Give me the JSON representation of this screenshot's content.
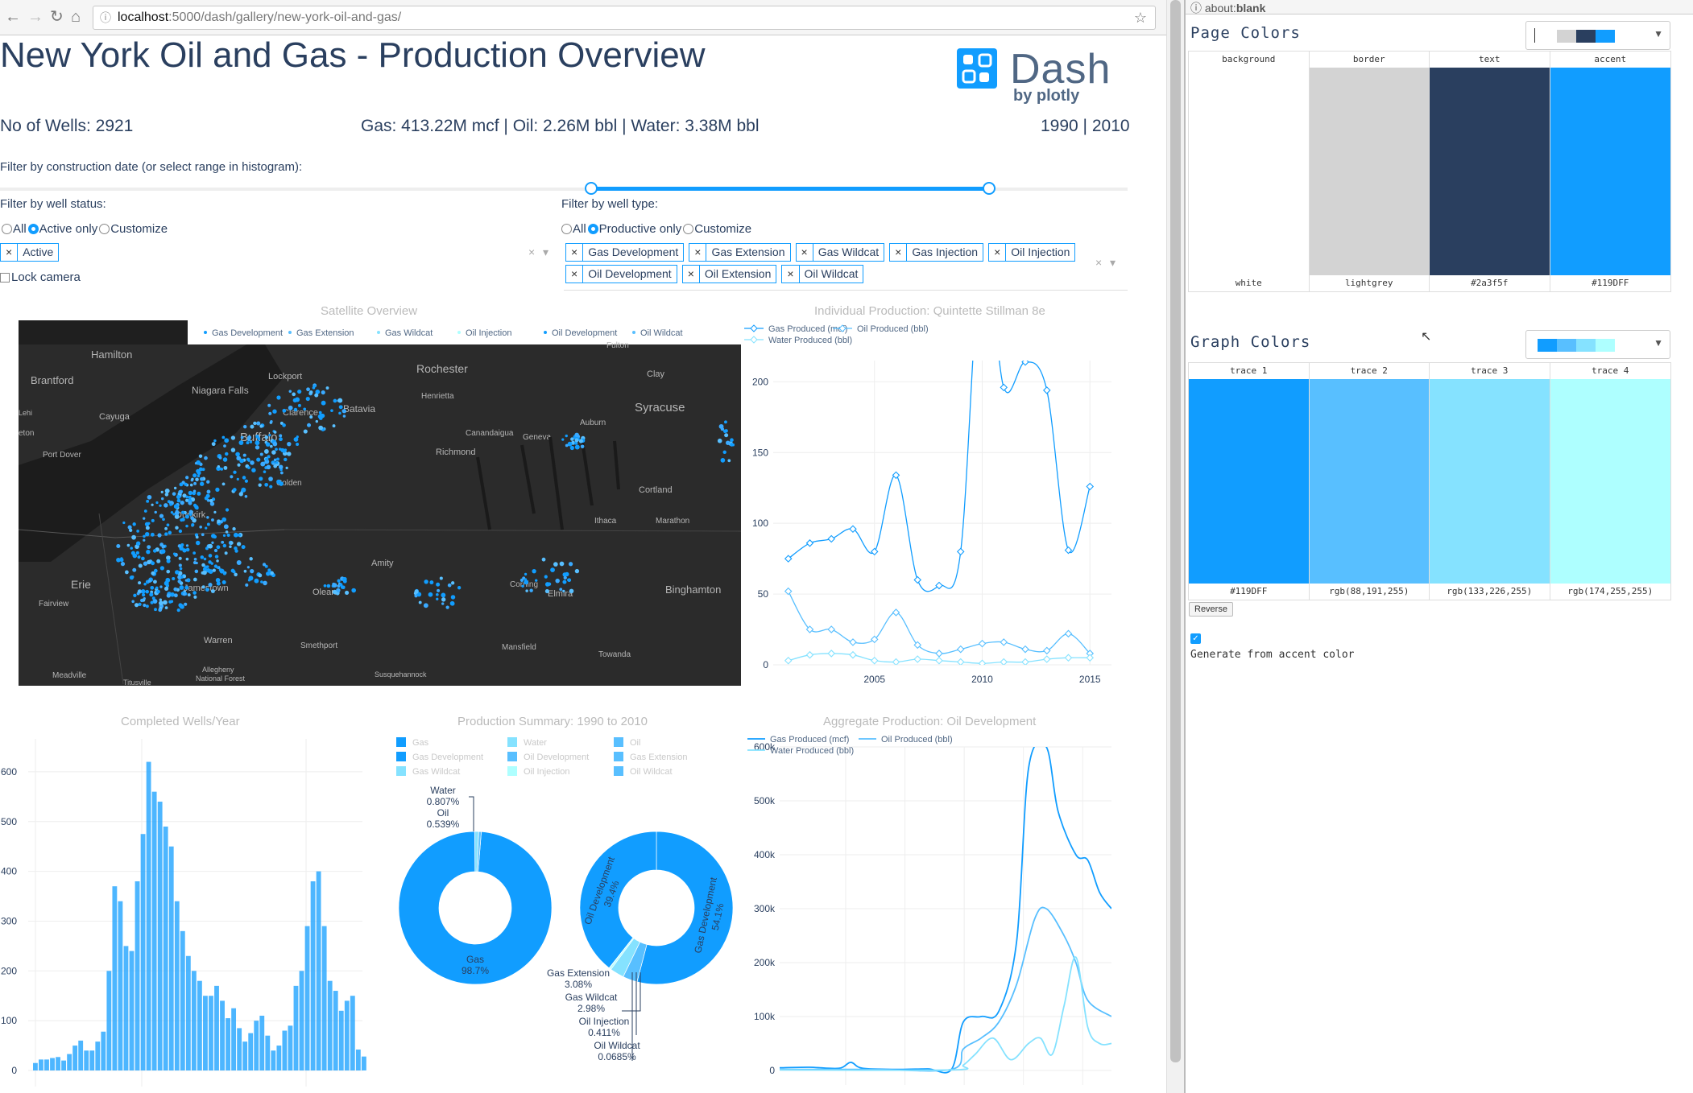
{
  "browser": {
    "url_host": "localhost",
    "url_path": ":5000/dash/gallery/new-york-oil-and-gas/",
    "right_url_prefix": "about:",
    "right_url_strong": "blank"
  },
  "header": {
    "title": "New York Oil and Gas - Production Overview",
    "logo_text": "Dash",
    "logo_sub": "by plotly"
  },
  "stats": {
    "wells": "No of Wells: 2921",
    "production": "Gas: 413.22M mcf | Oil: 2.26M bbl | Water: 3.38M bbl",
    "years": "1990 | 2010"
  },
  "filters": {
    "date_label": "Filter by construction date (or select range in histogram):",
    "status_label": "Filter by well status:",
    "type_label": "Filter by well type:",
    "status_options": [
      "All",
      "Active only",
      "Customize"
    ],
    "status_selected": 1,
    "type_options": [
      "All",
      "Productive only",
      "Customize"
    ],
    "type_selected": 1,
    "status_tags": [
      "Active"
    ],
    "type_tags": [
      "Gas Development",
      "Gas Extension",
      "Gas Wildcat",
      "Gas Injection",
      "Oil Injection",
      "Oil Development",
      "Oil Extension",
      "Oil Wildcat"
    ],
    "lock_camera": "Lock camera",
    "remove_symbol": "×",
    "clear_symbol": "×",
    "caret_symbol": "▾"
  },
  "map": {
    "title": "Satellite Overview",
    "legend": [
      "Gas Development",
      "Gas Extension",
      "Gas Wildcat",
      "Oil Injection",
      "Oil Development",
      "Oil Wildcat"
    ],
    "places": [
      "Hamilton",
      "Brantford",
      "Niagara Falls",
      "Lockport",
      "Rochester",
      "Clay",
      "Syracuse",
      "Henrietta",
      "Cayuga",
      "Clarence",
      "Batavia",
      "Buffalo",
      "Canandaigua",
      "Geneva",
      "Auburn",
      "Port Dover",
      "Richmond",
      "Colden",
      "Cortland",
      "Dunkirk",
      "Ithaca",
      "Marathon",
      "Amity",
      "Erie",
      "Jamestown",
      "Olean",
      "Corning",
      "Elmira",
      "Binghamton",
      "Fairview",
      "Warren",
      "Smethport",
      "Mansfield",
      "Towanda",
      "Meadville",
      "Allegheny National Forest",
      "Susquehannock",
      "Fulton",
      "Titusville",
      "Lehi",
      "eton"
    ]
  },
  "individual": {
    "title": "Individual Production: Quintette Stillman 8e",
    "legend": [
      "Gas Produced (mcf)",
      "Oil Produced (bbl)",
      "Water Produced (bbl)"
    ],
    "x": [
      2001,
      2002,
      2003,
      2004,
      2005,
      2006,
      2007,
      2008,
      2009,
      2010,
      2011,
      2012,
      2013,
      2014,
      2015
    ],
    "gas": [
      75,
      86,
      89,
      96,
      80,
      134,
      60,
      56,
      80,
      300,
      196,
      214,
      194,
      81,
      126
    ],
    "oil": [
      52,
      25,
      25,
      16,
      18,
      37,
      14,
      8,
      11,
      15,
      16,
      11,
      10,
      22,
      8
    ],
    "water": [
      3,
      7,
      8,
      7,
      3,
      2,
      4,
      3,
      2,
      1,
      2,
      2,
      4,
      5,
      5
    ],
    "x_ticks": [
      2005,
      2010,
      2015
    ],
    "y_ticks": [
      0,
      50,
      100,
      150,
      200
    ],
    "ylim": [
      0,
      215
    ],
    "xlim": [
      2000.3,
      2016
    ]
  },
  "histogram": {
    "title": "Completed Wells/Year",
    "y_ticks": [
      "0",
      "100",
      "200",
      "300",
      "400",
      "500",
      "600"
    ],
    "ylim": [
      0,
      650
    ],
    "values": [
      15,
      22,
      22,
      25,
      27,
      20,
      33,
      50,
      60,
      40,
      40,
      58,
      78,
      200,
      370,
      340,
      250,
      240,
      380,
      475,
      620,
      560,
      540,
      490,
      450,
      340,
      280,
      230,
      200,
      180,
      150,
      150,
      170,
      140,
      105,
      125,
      85,
      58,
      75,
      100,
      110,
      70,
      40,
      50,
      80,
      90,
      170,
      200,
      290,
      380,
      400,
      290,
      180,
      160,
      120,
      140,
      150,
      42,
      28
    ]
  },
  "pies": {
    "title": "Production Summary: 1990 to 2010",
    "legend": [
      {
        "label": "Gas",
        "color": "#119DFF"
      },
      {
        "label": "Water",
        "color": "#85E2FF"
      },
      {
        "label": "Oil",
        "color": "#58BFFF"
      },
      {
        "label": "Gas Development",
        "color": "#119DFF"
      },
      {
        "label": "Oil Development",
        "color": "#58BFFF"
      },
      {
        "label": "Gas Extension",
        "color": "#58BFFF"
      },
      {
        "label": "Gas Wildcat",
        "color": "#85E2FF"
      },
      {
        "label": "Oil Injection",
        "color": "#AEFFFF"
      },
      {
        "label": "Oil Wildcat",
        "color": "#58BFFF"
      }
    ],
    "pie1": [
      {
        "label": "Gas",
        "value": 98.7,
        "text": "98.7%",
        "color": "#119DFF"
      },
      {
        "label": "Water",
        "value": 0.807,
        "text": "0.807%",
        "color": "#85E2FF"
      },
      {
        "label": "Oil",
        "value": 0.539,
        "text": "0.539%",
        "color": "#58BFFF"
      }
    ],
    "pie2": [
      {
        "label": "Gas Development",
        "value": 54.1,
        "text": "54.1%",
        "color": "#119DFF"
      },
      {
        "label": "Oil Development",
        "value": 39.4,
        "text": "39.4%",
        "color": "#119DFF"
      },
      {
        "label": "Gas Extension",
        "value": 3.08,
        "text": "3.08%",
        "color": "#58BFFF"
      },
      {
        "label": "Gas Wildcat",
        "value": 2.98,
        "text": "2.98%",
        "color": "#85E2FF"
      },
      {
        "label": "Oil Injection",
        "value": 0.411,
        "text": "0.411%",
        "color": "#AEFFFF"
      },
      {
        "label": "Oil Wildcat",
        "value": 0.0685,
        "text": "0.0685%",
        "color": "#58BFFF"
      }
    ]
  },
  "aggregate": {
    "title": "Aggregate Production: Oil Development",
    "legend": [
      "Gas Produced (mcf)",
      "Oil Produced (bbl)",
      "Water Produced (bbl)"
    ],
    "y_ticks": [
      "0",
      "100k",
      "200k",
      "300k",
      "400k",
      "500k",
      "600k"
    ],
    "ylim": [
      0,
      600000
    ],
    "xlim": [
      1960,
      2016
    ],
    "gas": [
      [
        1960,
        5000
      ],
      [
        1965,
        6000
      ],
      [
        1970,
        4000
      ],
      [
        1972,
        15000
      ],
      [
        1974,
        4000
      ],
      [
        1980,
        2000
      ],
      [
        1985,
        3000
      ],
      [
        1989,
        2000
      ],
      [
        1991,
        90000
      ],
      [
        1994,
        100000
      ],
      [
        1997,
        110000
      ],
      [
        2000,
        240000
      ],
      [
        2002,
        560000
      ],
      [
        2005,
        600000
      ],
      [
        2007,
        480000
      ],
      [
        2010,
        400000
      ],
      [
        2012,
        390000
      ],
      [
        2014,
        330000
      ],
      [
        2016,
        300000
      ]
    ],
    "oil": [
      [
        1960,
        2000
      ],
      [
        1975,
        2000
      ],
      [
        1989,
        2000
      ],
      [
        1991,
        40000
      ],
      [
        1994,
        60000
      ],
      [
        1997,
        90000
      ],
      [
        2000,
        160000
      ],
      [
        2003,
        280000
      ],
      [
        2005,
        300000
      ],
      [
        2008,
        250000
      ],
      [
        2010,
        200000
      ],
      [
        2012,
        130000
      ],
      [
        2016,
        100000
      ]
    ],
    "water": [
      [
        1960,
        1000
      ],
      [
        1989,
        1000
      ],
      [
        1991,
        10000
      ],
      [
        1993,
        30000
      ],
      [
        1996,
        60000
      ],
      [
        1999,
        20000
      ],
      [
        2002,
        50000
      ],
      [
        2004,
        60000
      ],
      [
        2006,
        30000
      ],
      [
        2008,
        120000
      ],
      [
        2010,
        210000
      ],
      [
        2012,
        80000
      ],
      [
        2014,
        50000
      ],
      [
        2016,
        50000
      ]
    ]
  },
  "page_colors": {
    "title": "Page Colors",
    "columns": [
      {
        "head": "background",
        "foot": "white",
        "color": "#ffffff"
      },
      {
        "head": "border",
        "foot": "lightgrey",
        "color": "#d3d3d3"
      },
      {
        "head": "text",
        "foot": "#2a3f5f",
        "color": "#2a3f5f"
      },
      {
        "head": "accent",
        "foot": "#119DFF",
        "color": "#119DFF"
      }
    ]
  },
  "graph_colors": {
    "title": "Graph Colors",
    "columns": [
      {
        "head": "trace 1",
        "foot": "#119DFF",
        "color": "#119DFF"
      },
      {
        "head": "trace 2",
        "foot": "rgb(88,191,255)",
        "color": "#58BFFF"
      },
      {
        "head": "trace 3",
        "foot": "rgb(133,226,255)",
        "color": "#85E2FF"
      },
      {
        "head": "trace 4",
        "foot": "rgb(174,255,255)",
        "color": "#AEFFFF"
      }
    ],
    "reverse_label": "Reverse",
    "generate_label": "Generate from accent color"
  }
}
